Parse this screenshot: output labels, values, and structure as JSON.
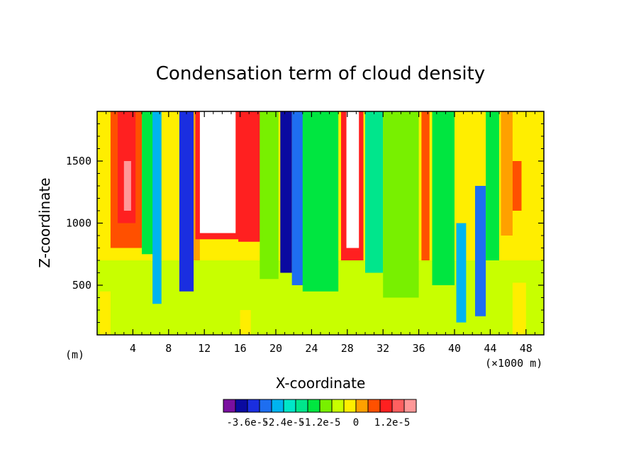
{
  "chart_data": {
    "type": "heatmap",
    "title": "Condensation term of cloud density",
    "xlabel": "X-coordinate",
    "ylabel": "Z-coordinate",
    "x_unit_label": "(m)",
    "x_scale_label": "(×1000 m)",
    "xlim": [
      0,
      50
    ],
    "ylim": [
      100,
      1900
    ],
    "x_ticks": [
      4,
      8,
      12,
      16,
      20,
      24,
      28,
      32,
      36,
      40,
      44,
      48
    ],
    "y_ticks": [
      500,
      1000,
      1500
    ],
    "colorbar": {
      "colors": [
        "#7a0fa0",
        "#0a0aa0",
        "#1a2ee0",
        "#1e6ef0",
        "#00b4f0",
        "#00e6c8",
        "#00e68c",
        "#00e640",
        "#78f000",
        "#c8ff00",
        "#ffee00",
        "#ffa000",
        "#ff5000",
        "#ff2020",
        "#ff6060",
        "#ff9898"
      ],
      "tick_labels": [
        "-3.6e-5",
        "-2.4e-5",
        "-1.2e-5",
        "0",
        "1.2e-5"
      ]
    },
    "regions": [
      {
        "x": [
          0,
          50
        ],
        "z": [
          100,
          1900
        ],
        "v": 0
      },
      {
        "x": [
          0,
          50
        ],
        "z": [
          100,
          250
        ],
        "v": 0
      },
      {
        "x": [
          0.3,
          1.5
        ],
        "z": [
          100,
          450
        ],
        "v": 1
      },
      {
        "x": [
          16,
          17.2
        ],
        "z": [
          100,
          300
        ],
        "v": 1
      },
      {
        "x": [
          46.5,
          48
        ],
        "z": [
          100,
          520
        ],
        "v": 1
      },
      {
        "x": [
          0,
          50
        ],
        "z": [
          700,
          1900
        ],
        "v": 1
      },
      {
        "x": [
          1.5,
          5.2
        ],
        "z": [
          800,
          1900
        ],
        "v": 3
      },
      {
        "x": [
          2.3,
          4.3
        ],
        "z": [
          1000,
          1900
        ],
        "v": 4
      },
      {
        "x": [
          3,
          3.8
        ],
        "z": [
          1100,
          1500
        ],
        "v": 6
      },
      {
        "x": [
          5,
          7
        ],
        "z": [
          750,
          1900
        ],
        "v": -2
      },
      {
        "x": [
          6.2,
          7.2
        ],
        "z": [
          350,
          1900
        ],
        "v": -5
      },
      {
        "x": [
          9.2,
          10.8
        ],
        "z": [
          450,
          1900
        ],
        "v": -7
      },
      {
        "x": [
          10.8,
          11.5
        ],
        "z": [
          700,
          1900
        ],
        "v": 2
      },
      {
        "x": [
          11,
          16.5
        ],
        "z": [
          870,
          1900
        ],
        "v": 4
      },
      {
        "x": [
          11.5,
          15.5
        ],
        "z": [
          920,
          1900
        ],
        "v": 7
      },
      {
        "x": [
          15.8,
          18.3
        ],
        "z": [
          850,
          1900
        ],
        "v": 4
      },
      {
        "x": [
          18.2,
          20.3
        ],
        "z": [
          550,
          1900
        ],
        "v": -1
      },
      {
        "x": [
          20.5,
          21.8
        ],
        "z": [
          600,
          1900
        ],
        "v": -8
      },
      {
        "x": [
          21.8,
          23.2
        ],
        "z": [
          500,
          1900
        ],
        "v": -6
      },
      {
        "x": [
          23,
          27
        ],
        "z": [
          450,
          1900
        ],
        "v": -2
      },
      {
        "x": [
          27.3,
          29.8
        ],
        "z": [
          700,
          1900
        ],
        "v": 4
      },
      {
        "x": [
          27.9,
          29.3
        ],
        "z": [
          800,
          1900
        ],
        "v": 7
      },
      {
        "x": [
          30,
          32
        ],
        "z": [
          600,
          1900
        ],
        "v": -3
      },
      {
        "x": [
          32,
          36
        ],
        "z": [
          400,
          1900
        ],
        "v": -1
      },
      {
        "x": [
          36.3,
          37.2
        ],
        "z": [
          700,
          1900
        ],
        "v": 3
      },
      {
        "x": [
          37.5,
          40
        ],
        "z": [
          500,
          1900
        ],
        "v": -2
      },
      {
        "x": [
          40.2,
          41.3
        ],
        "z": [
          200,
          1000
        ],
        "v": -5
      },
      {
        "x": [
          42.3,
          43.5
        ],
        "z": [
          250,
          1300
        ],
        "v": -6
      },
      {
        "x": [
          43.5,
          45
        ],
        "z": [
          700,
          1900
        ],
        "v": -2
      },
      {
        "x": [
          45.2,
          46.5
        ],
        "z": [
          900,
          1900
        ],
        "v": 2
      },
      {
        "x": [
          46.5,
          47.5
        ],
        "z": [
          1100,
          1500
        ],
        "v": 3
      },
      {
        "x": [
          48,
          49.7
        ],
        "z": [
          700,
          1900
        ],
        "v": 1
      }
    ]
  }
}
